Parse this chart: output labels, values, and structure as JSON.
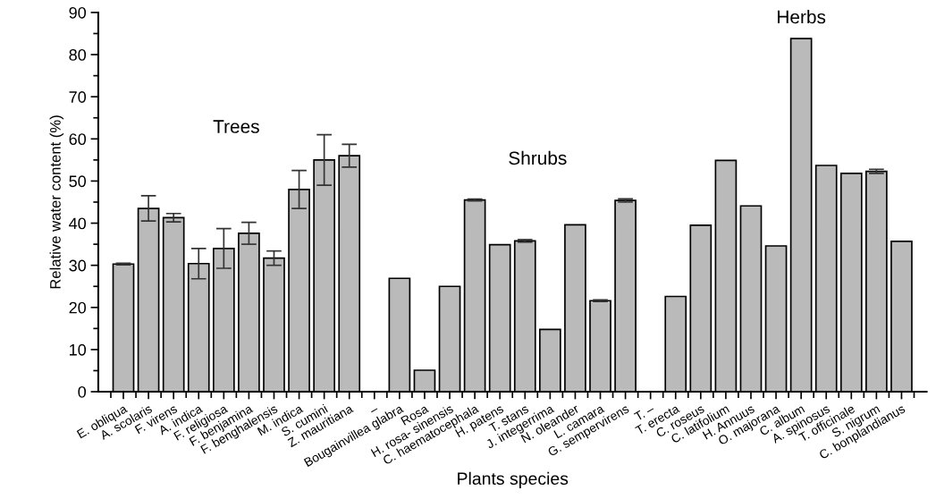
{
  "chart_data": {
    "type": "bar",
    "xlabel": "Plants species",
    "ylabel": "Relative water content (%)",
    "categories": [
      "E. obliqua",
      "A. scolaris",
      "F. virens",
      "A. indica",
      "F. religiosa",
      "F. benjamina",
      "F. benghalensis",
      "M. indica",
      "S. cumini",
      "Z. mauritiana",
      "–",
      "Bougainvillea glabra",
      "Rosa",
      "H. rosa- sinensis",
      "C. haematocephala",
      "H. patens",
      "T. stans",
      "J. integerrima",
      "N. oleander",
      "L. camara",
      "G. sempervirens",
      "T. –",
      "T. erecta",
      "C. roseus",
      "C. latifolium",
      "H. Annuus",
      "O. majorana",
      "C. album",
      "A. spinosus",
      "T. officinale",
      "S. nigrum",
      "C. bonplandianus"
    ],
    "values": [
      30.3,
      43.5,
      41.3,
      30.4,
      34.0,
      37.6,
      31.7,
      48.0,
      55.0,
      56.0,
      null,
      26.9,
      5.1,
      25.0,
      45.5,
      34.9,
      35.8,
      14.8,
      39.6,
      21.6,
      45.4,
      null,
      22.6,
      39.5,
      54.9,
      44.1,
      34.6,
      83.8,
      53.7,
      51.8,
      52.3,
      35.7
    ],
    "errors": [
      0.2,
      3.0,
      1.0,
      3.6,
      4.7,
      2.6,
      1.7,
      4.5,
      6.0,
      2.7,
      null,
      null,
      null,
      null,
      0.2,
      null,
      0.3,
      null,
      null,
      0.2,
      0.4,
      null,
      null,
      null,
      null,
      null,
      null,
      null,
      null,
      null,
      0.5,
      null
    ],
    "color": "#bababa",
    "ylim": [
      0,
      90
    ],
    "yticks": [
      0,
      10,
      20,
      30,
      40,
      50,
      60,
      70,
      80,
      90
    ],
    "annotations": [
      "Trees",
      "Shrubs",
      "Herbs"
    ],
    "grid": false
  }
}
